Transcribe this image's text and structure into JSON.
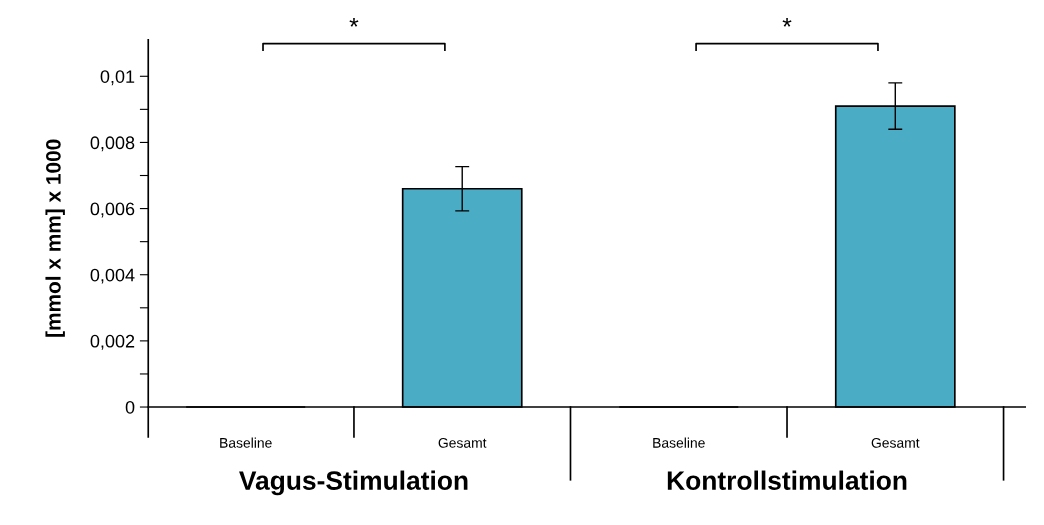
{
  "chart_data": {
    "type": "bar",
    "ylabel": "[mmol x mm] x 1000",
    "categories": [
      "Baseline",
      "Gesamt",
      "Baseline",
      "Gesamt"
    ],
    "values": [
      0,
      0.0066,
      0,
      0.0091
    ],
    "errors": [
      null,
      0.00067,
      null,
      0.0007
    ],
    "color": "#4bacc6",
    "ylim": [
      -0.0009,
      0.0111
    ],
    "yticks": [
      0,
      {
        "value": 0.001,
        "label": null
      },
      {
        "value": 0.002,
        "label": "0,002"
      },
      {
        "value": 0.003,
        "label": null
      },
      {
        "value": 0.004,
        "label": "0,004"
      },
      {
        "value": 0.005,
        "label": null
      },
      {
        "value": 0.006,
        "label": "0,006"
      },
      {
        "value": 0.007,
        "label": null
      },
      {
        "value": 0.008,
        "label": "0,008"
      },
      {
        "value": 0.009,
        "label": null
      },
      {
        "value": 0.01,
        "label": "0,01"
      }
    ],
    "annotations": [
      "*",
      "*",
      "Vagus-Stimulation",
      "Kontrollstimulation"
    ],
    "grid": false,
    "legend": false
  }
}
